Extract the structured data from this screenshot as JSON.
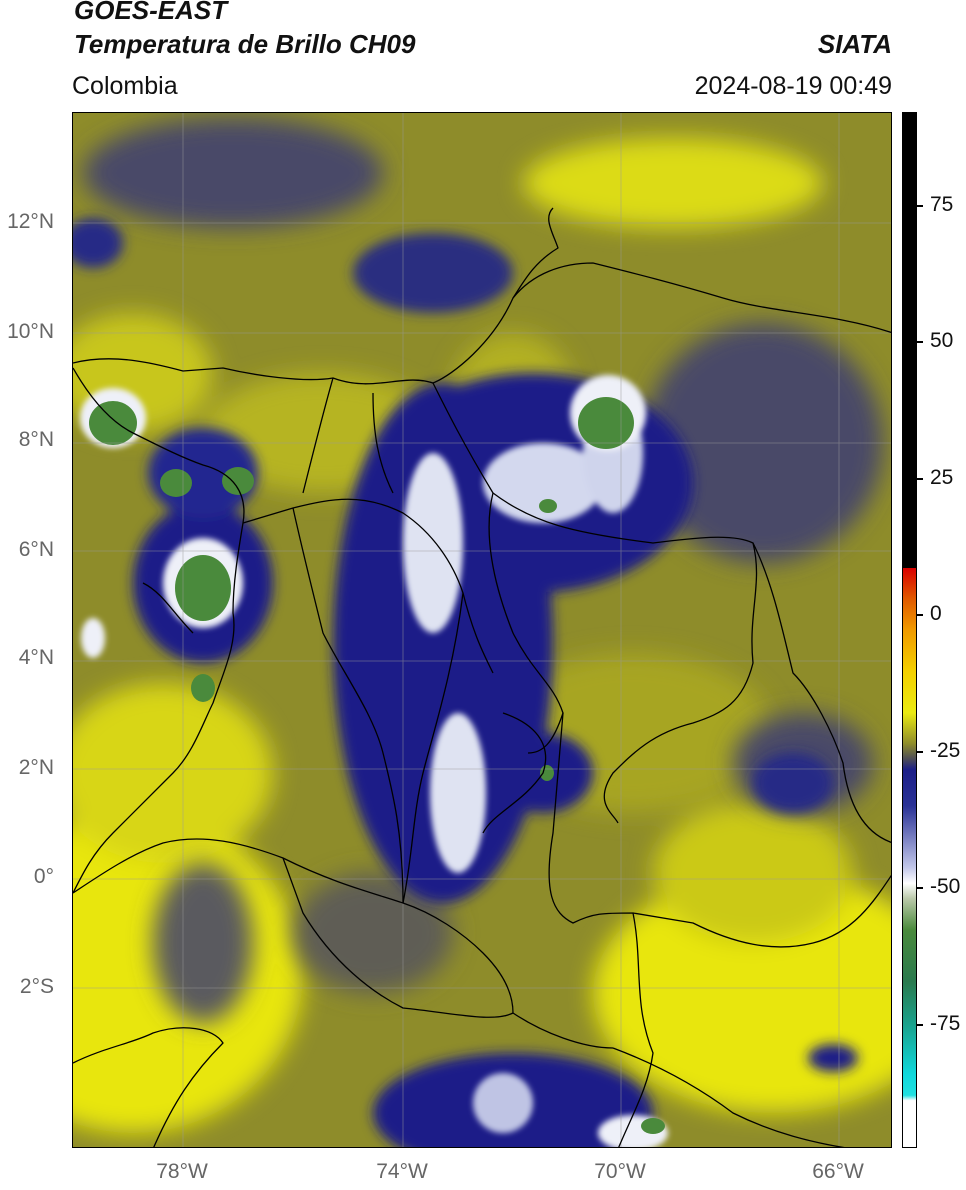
{
  "header": {
    "satellite": "GOES-EAST",
    "product": "Temperatura de Brillo CH09",
    "organization": "SIATA",
    "region": "Colombia",
    "datetime": "2024-08-19 00:49"
  },
  "map": {
    "lat_labels": [
      "12°N",
      "10°N",
      "8°N",
      "6°N",
      "4°N",
      "2°N",
      "0°",
      "2°S"
    ],
    "lon_labels": [
      "78°W",
      "74°W",
      "70°W",
      "66°W"
    ],
    "colors": {
      "warm": "#e8e60a",
      "mid": "#8e8c2a",
      "cool": "#4a4a68",
      "cold": "#1c1f88",
      "very_cold": "#dfe3f2",
      "coldest": "#4a8a3c",
      "border": "#000000",
      "grid": "#9a9a9a"
    }
  },
  "colorbar": {
    "tick_labels": [
      "75",
      "50",
      "25",
      "0",
      "-25",
      "-50",
      "-75"
    ]
  }
}
